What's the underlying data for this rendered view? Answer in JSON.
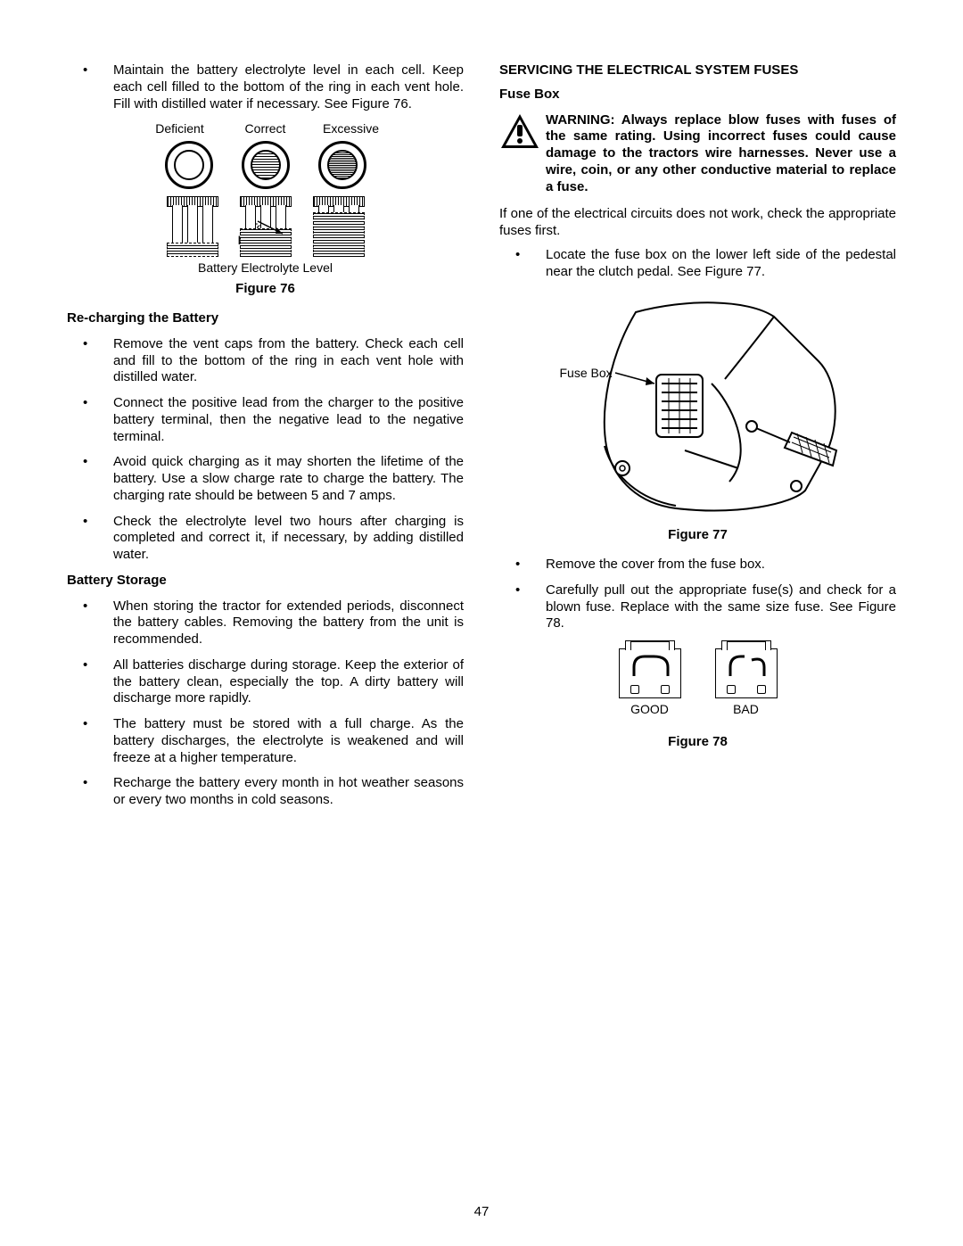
{
  "page_number": "47",
  "left": {
    "intro_bullet": "Maintain the battery electrolyte level in each cell. Keep each cell filled to the bottom of the ring in each vent hole. Fill with distilled water if necessary. See Figure 76.",
    "fig76": {
      "labels": [
        "Deficient",
        "Correct",
        "Excessive"
      ],
      "to_ring": "To\nRing",
      "sub_caption": "Battery Electrolyte Level",
      "caption": "Figure 76"
    },
    "recharge_heading": "Re-charging the Battery",
    "recharge_bullets": [
      "Remove the vent caps from the battery. Check each cell and fill to the bottom of the ring in each vent hole with distilled water.",
      "Connect the positive lead from the charger to the positive battery terminal, then the negative lead to the negative terminal.",
      "Avoid quick charging as it may shorten the lifetime of the battery. Use a slow charge rate to charge the battery. The charging rate should be between 5 and 7 amps.",
      "Check the electrolyte level two hours after charging is completed and correct it, if necessary, by adding distilled water."
    ],
    "storage_heading": "Battery Storage",
    "storage_bullets": [
      "When storing the tractor for extended periods, disconnect the battery cables. Removing the battery from the unit is recommended.",
      "All batteries discharge during storage. Keep the exterior of the battery clean, especially the top. A dirty battery will discharge more rapidly.",
      "The battery must be stored with a full charge. As the battery discharges, the electrolyte is weakened and will freeze at a higher temperature.",
      "Recharge the battery every month in hot weather seasons or every two months in cold seasons."
    ]
  },
  "right": {
    "heading": "SERVICING THE ELECTRICAL SYSTEM FUSES",
    "sub_heading": "Fuse Box",
    "warning": "WARNING: Always replace blow fuses with fuses of the same rating. Using incorrect fuses could cause damage to the tractors wire harnesses. Never use a wire, coin, or any other conductive material to replace a fuse.",
    "para1": "If one of the electrical circuits does not work, check the appropriate fuses first.",
    "bullet1": "Locate the fuse box on the lower left side of the pedestal near the clutch pedal. See Figure 77.",
    "fig77_label": "Fuse Box",
    "fig77_caption": "Figure 77",
    "bullets_after": [
      "Remove the cover from the fuse box.",
      "Carefully pull out the appropriate fuse(s) and check for a blown fuse. Replace with the same size fuse. See Figure 78."
    ],
    "fig78": {
      "good": "GOOD",
      "bad": "BAD",
      "caption": "Figure 78"
    }
  }
}
